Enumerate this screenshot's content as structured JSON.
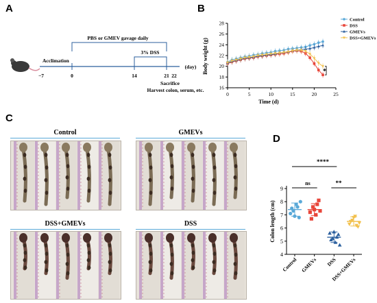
{
  "panels": {
    "a": "A",
    "b": "B",
    "c": "C",
    "d": "D"
  },
  "timeline": {
    "top_label": "PBS or GMEV gavage daily",
    "dss_label": "3% DSS",
    "acclimation": "Acclimation",
    "day_unit": "(day)",
    "ticks": [
      "−7",
      "0",
      "14",
      "21",
      "22"
    ],
    "sacrifice": "Sacrifice",
    "harvest": "Harvest colon, serum, etc."
  },
  "colors": {
    "control": "#5aa9d8",
    "dss": "#e8463a",
    "gmevs": "#2b5f9e",
    "dss_gmevs": "#f2c14e",
    "title_line": "#5aa9d8",
    "ruler": "#c6a6c9"
  },
  "photos": {
    "control": "Control",
    "gmevs": "GMEVs",
    "dss_gmevs": "DSS+GMEVs",
    "dss": "DSS"
  },
  "chart_data": [
    {
      "type": "line",
      "xlabel": "Time (d)",
      "ylabel": "Body weight (g)",
      "xlim": [
        0,
        25
      ],
      "ylim": [
        16,
        28
      ],
      "x_ticks": [
        "0",
        "5",
        "10",
        "15",
        "20",
        "25"
      ],
      "y_ticks": [
        "16",
        "18",
        "20",
        "22",
        "24",
        "26",
        "28"
      ],
      "annotation": "*",
      "legend_position": "top-right",
      "series": [
        {
          "name": "Control",
          "x": [
            0,
            1,
            2,
            3,
            4,
            5,
            6,
            7,
            8,
            9,
            10,
            11,
            12,
            13,
            14,
            15,
            16,
            17,
            18,
            19,
            20,
            21,
            22
          ],
          "y": [
            20.8,
            21.2,
            21.4,
            21.6,
            21.8,
            21.9,
            22.1,
            22.2,
            22.4,
            22.5,
            22.6,
            22.8,
            22.9,
            23.0,
            23.2,
            23.3,
            23.4,
            23.5,
            23.6,
            23.9,
            24.1,
            24.4,
            24.6
          ]
        },
        {
          "name": "DSS",
          "x": [
            0,
            1,
            2,
            3,
            4,
            5,
            6,
            7,
            8,
            9,
            10,
            11,
            12,
            13,
            14,
            15,
            16,
            17,
            18,
            19,
            20,
            21,
            22
          ],
          "y": [
            20.5,
            20.8,
            21.0,
            21.2,
            21.4,
            21.5,
            21.6,
            21.8,
            21.9,
            22.0,
            22.1,
            22.2,
            22.3,
            22.4,
            22.6,
            22.8,
            22.9,
            22.8,
            22.4,
            21.6,
            20.5,
            19.3,
            18.4
          ]
        },
        {
          "name": "GMEVs",
          "x": [
            0,
            1,
            2,
            3,
            4,
            5,
            6,
            7,
            8,
            9,
            10,
            11,
            12,
            13,
            14,
            15,
            16,
            17,
            18,
            19,
            20,
            21,
            22
          ],
          "y": [
            20.6,
            20.9,
            21.1,
            21.3,
            21.5,
            21.6,
            21.7,
            21.9,
            22.0,
            22.1,
            22.2,
            22.3,
            22.5,
            22.6,
            22.7,
            22.9,
            23.0,
            23.1,
            23.2,
            23.3,
            23.5,
            23.7,
            23.9
          ]
        },
        {
          "name": "DSS+GMEVs",
          "x": [
            0,
            1,
            2,
            3,
            4,
            5,
            6,
            7,
            8,
            9,
            10,
            11,
            12,
            13,
            14,
            15,
            16,
            17,
            18,
            19,
            20,
            21,
            22
          ],
          "y": [
            20.7,
            21.0,
            21.2,
            21.4,
            21.6,
            21.7,
            21.8,
            22.0,
            22.1,
            22.2,
            22.3,
            22.4,
            22.5,
            22.6,
            22.7,
            22.9,
            23.0,
            23.0,
            22.8,
            22.3,
            21.5,
            20.6,
            20.0
          ]
        }
      ]
    },
    {
      "type": "scatter",
      "ylabel": "Colon length (cm)",
      "ylim": [
        4,
        9
      ],
      "y_ticks": [
        "4",
        "5",
        "6",
        "7",
        "8",
        "9"
      ],
      "categories": [
        "Control",
        "GMEVs",
        "DSS",
        "DSS+GMEVs"
      ],
      "series": [
        {
          "name": "Control",
          "values": [
            7.1,
            7.3,
            7.8,
            6.8,
            7.5,
            6.9,
            7.6,
            8.0
          ],
          "mean": 7.4,
          "sd": 0.5
        },
        {
          "name": "GMEVs",
          "values": [
            7.2,
            7.6,
            7.0,
            8.1,
            6.7,
            7.4,
            7.8,
            7.3
          ],
          "mean": 7.4,
          "sd": 0.45
        },
        {
          "name": "DSS",
          "values": [
            5.6,
            5.2,
            4.9,
            5.5,
            5.1,
            5.7,
            5.3,
            4.7
          ],
          "mean": 5.3,
          "sd": 0.4
        },
        {
          "name": "DSS+GMEVs",
          "values": [
            6.3,
            6.6,
            6.9,
            6.1,
            6.5,
            6.8,
            6.2,
            6.4
          ],
          "mean": 6.5,
          "sd": 0.35
        }
      ],
      "annotations": {
        "sig_top": "****",
        "sig_left": "ns",
        "sig_right": "**"
      }
    }
  ]
}
